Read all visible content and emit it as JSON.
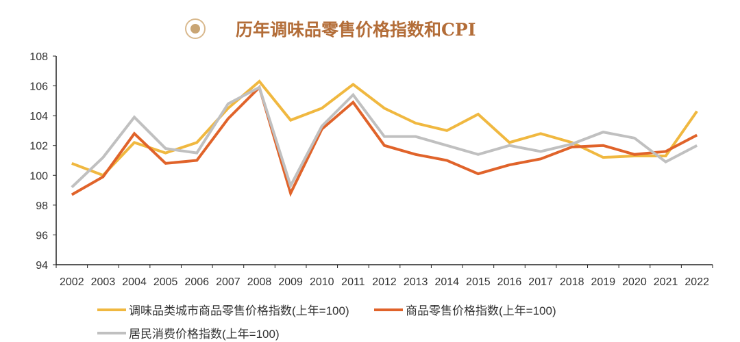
{
  "title": "历年调味品零售价格指数和CPI",
  "chart_data": {
    "type": "line",
    "title": "历年调味品零售价格指数和CPI",
    "x": [
      "2002",
      "2003",
      "2004",
      "2005",
      "2006",
      "2007",
      "2008",
      "2009",
      "2010",
      "2011",
      "2012",
      "2013",
      "2014",
      "2015",
      "2016",
      "2017",
      "2018",
      "2019",
      "2020",
      "2021",
      "2022"
    ],
    "ylim": [
      94,
      108
    ],
    "yticks": [
      "94",
      "96",
      "98",
      "100",
      "102",
      "104",
      "106",
      "108"
    ],
    "grid": false,
    "legend_placement": "bottom",
    "series": [
      {
        "name": "调味品类城市商品零售价格指数(上年=100)",
        "color": "#f0b840",
        "values": [
          100.8,
          100.0,
          102.2,
          101.5,
          102.2,
          104.5,
          106.3,
          103.7,
          104.5,
          106.1,
          104.5,
          103.5,
          103.0,
          104.1,
          102.2,
          102.8,
          102.2,
          101.2,
          101.3,
          101.3,
          104.3
        ]
      },
      {
        "name": "商品零售价格指数(上年=100)",
        "color": "#e0632a",
        "values": [
          98.7,
          99.9,
          102.8,
          100.8,
          101.0,
          103.8,
          105.9,
          98.8,
          103.1,
          104.9,
          102.0,
          101.4,
          101.0,
          100.1,
          100.7,
          101.1,
          101.9,
          102.0,
          101.4,
          101.6,
          102.7
        ]
      },
      {
        "name": "居民消费价格指数(上年=100)",
        "color": "#c0c0c0",
        "values": [
          99.2,
          101.2,
          103.9,
          101.8,
          101.5,
          104.8,
          105.9,
          99.3,
          103.3,
          105.4,
          102.6,
          102.6,
          102.0,
          101.4,
          102.0,
          101.6,
          102.1,
          102.9,
          102.5,
          100.9,
          102.0
        ]
      }
    ]
  }
}
